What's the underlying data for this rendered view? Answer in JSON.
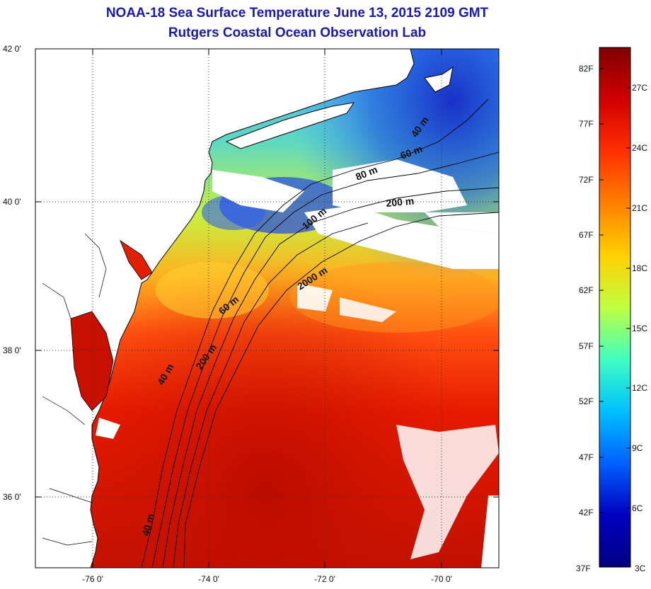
{
  "header": {
    "title": "NOAA-18 Sea Surface Temperature June 13, 2015 2109 GMT",
    "subtitle": "Rutgers Coastal Ocean Observation Lab"
  },
  "map": {
    "lat_labels": [
      "42 0'",
      "40 0'",
      "38 0'",
      "36 0'"
    ],
    "lon_labels": [
      "-76 0'",
      "-74 0'",
      "-72 0'",
      "-70 0'"
    ],
    "depth_contour_labels": [
      "40 m",
      "60 m",
      "80 m",
      "200 m",
      "100 m",
      "2000 m",
      "60 m",
      "200 m",
      "40 m",
      "40 m"
    ],
    "colors": {
      "land": "#ffffff",
      "cloud": "#ffffff",
      "warm": "#cc1a00",
      "cool": "#2040d0"
    }
  },
  "colorbar": {
    "fahrenheit_labels": [
      "82F",
      "77F",
      "72F",
      "67F",
      "62F",
      "57F",
      "52F",
      "47F",
      "42F",
      "37F"
    ],
    "celsius_labels": [
      "27C",
      "24C",
      "21C",
      "18C",
      "15C",
      "12C",
      "9C",
      "6C",
      "3C"
    ],
    "colors": [
      "#800000",
      "#d00000",
      "#ff3000",
      "#ff8000",
      "#ffd000",
      "#c0ff40",
      "#40ffc0",
      "#00c0ff",
      "#0060ff",
      "#0000c0",
      "#000080"
    ]
  }
}
